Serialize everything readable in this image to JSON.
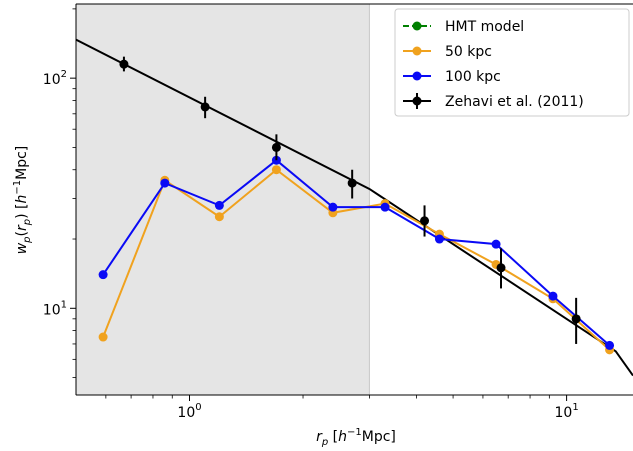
{
  "chart_data": {
    "type": "line",
    "xscale": "log",
    "yscale": "log",
    "xlim": [
      0.5,
      15
    ],
    "ylim": [
      4.2,
      210
    ],
    "xlabel": "r_p [h⁻¹Mpc]",
    "ylabel": "w_p(r_p) [h⁻¹Mpc]",
    "x_tick_labels": [
      {
        "value": 1,
        "label": "10",
        "exp": "0"
      },
      {
        "value": 10,
        "label": "10",
        "exp": "1"
      }
    ],
    "y_tick_labels": [
      {
        "value": 10,
        "label": "10",
        "exp": "1"
      },
      {
        "value": 100,
        "label": "10",
        "exp": "2"
      }
    ],
    "shaded_region": {
      "x_from": 0.5,
      "x_to": 3.0,
      "color": "#e5e5e5"
    },
    "grid": false,
    "legend": {
      "position": "top-right"
    },
    "colors": {
      "hmt": "#008000",
      "kpc50": "#f0a21e",
      "kpc100": "#0a0af5",
      "zehavi": "#000000"
    },
    "series": [
      {
        "name": "HMT model",
        "key": "hmt",
        "style": "dashed-marker",
        "x": [],
        "y": []
      },
      {
        "name": "50 kpc",
        "key": "kpc50",
        "style": "line-marker",
        "x": [
          0.59,
          0.86,
          1.2,
          1.7,
          2.4,
          3.3,
          4.6,
          6.5,
          9.2,
          13.0
        ],
        "y": [
          7.5,
          36,
          25,
          40,
          26,
          28.5,
          21,
          15.5,
          11,
          6.6
        ]
      },
      {
        "name": "100 kpc",
        "key": "kpc100",
        "style": "line-marker",
        "x": [
          0.59,
          0.86,
          1.2,
          1.7,
          2.4,
          3.3,
          4.6,
          6.5,
          9.2,
          13.0
        ],
        "y": [
          14,
          35,
          28,
          44,
          27.5,
          27.5,
          20,
          19,
          11.3,
          6.9
        ]
      },
      {
        "name": "Zehavi et al. (2011)",
        "key": "zehavi",
        "style": "errorbar",
        "x": [
          0.67,
          1.1,
          1.7,
          2.7,
          4.2,
          6.7,
          10.6
        ],
        "y": [
          115,
          75,
          50,
          35,
          24,
          15,
          9
        ],
        "yerr_low": [
          107,
          67,
          44,
          30,
          20.5,
          12.2,
          7.0
        ],
        "yerr_high": [
          124,
          83,
          57,
          40,
          28,
          18.2,
          11.1
        ]
      }
    ],
    "model_line": {
      "key": "zehavi",
      "x": [
        0.5,
        3.0,
        13.5,
        15.0
      ],
      "y": [
        147,
        33,
        6.5,
        5.1
      ]
    }
  }
}
